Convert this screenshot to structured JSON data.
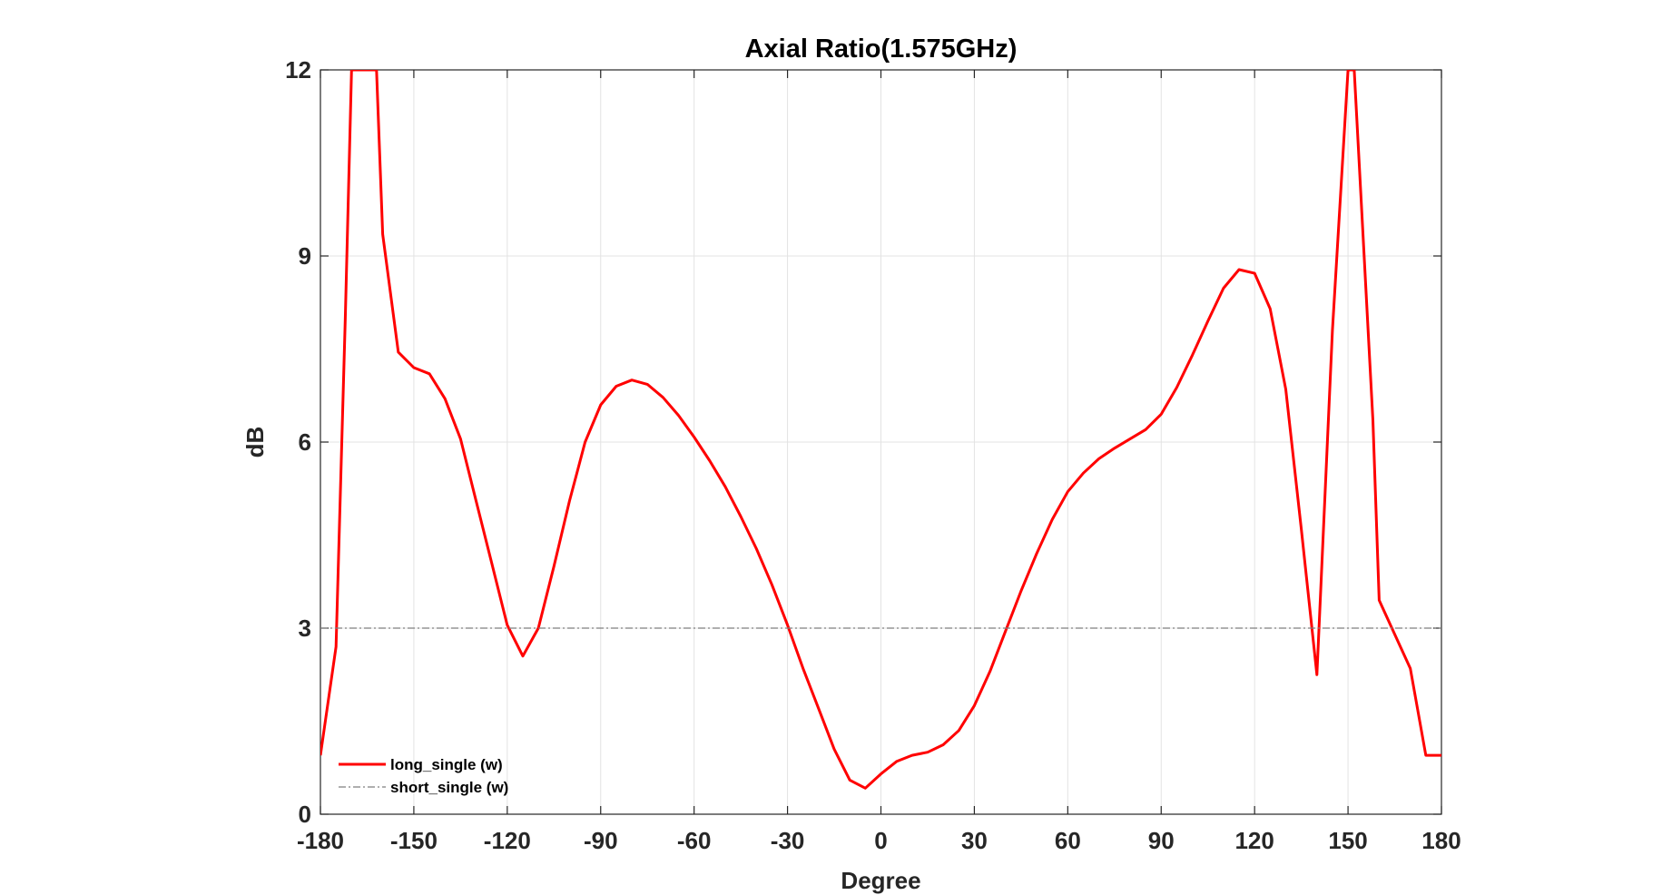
{
  "chart_data": {
    "type": "line",
    "title": "Axial Ratio(1.575GHz)",
    "xlabel": "Degree",
    "ylabel": "dB",
    "xlim": [
      -180,
      180
    ],
    "ylim": [
      0,
      12
    ],
    "xticks": [
      -180,
      -150,
      -120,
      -90,
      -60,
      -30,
      0,
      30,
      60,
      90,
      120,
      150,
      180
    ],
    "yticks": [
      0,
      3,
      6,
      9,
      12
    ],
    "grid": true,
    "legend_position": "bottom-left",
    "series": [
      {
        "name": "long_single (w)",
        "color": "#ff0000",
        "style": "solid",
        "x": [
          -180,
          -175,
          -172,
          -170,
          -162,
          -160,
          -155,
          -150,
          -145,
          -140,
          -135,
          -130,
          -125,
          -120,
          -115,
          -110,
          -105,
          -100,
          -95,
          -90,
          -85,
          -80,
          -75,
          -70,
          -65,
          -60,
          -55,
          -50,
          -45,
          -40,
          -35,
          -30,
          -25,
          -20,
          -15,
          -10,
          -5,
          0,
          5,
          10,
          15,
          20,
          25,
          30,
          35,
          40,
          45,
          50,
          55,
          60,
          65,
          70,
          75,
          80,
          85,
          90,
          95,
          100,
          105,
          110,
          115,
          120,
          125,
          130,
          135,
          140,
          145,
          150,
          152,
          158,
          160,
          165,
          170,
          175,
          180
        ],
        "y": [
          0.95,
          2.7,
          8.0,
          12.0,
          12.0,
          9.35,
          7.45,
          7.2,
          7.1,
          6.7,
          6.05,
          5.05,
          4.05,
          3.05,
          2.55,
          3.0,
          4.0,
          5.05,
          6.0,
          6.6,
          6.9,
          7.0,
          6.93,
          6.72,
          6.43,
          6.08,
          5.7,
          5.28,
          4.8,
          4.28,
          3.7,
          3.05,
          2.35,
          1.7,
          1.05,
          0.55,
          0.42,
          0.65,
          0.85,
          0.95,
          1.0,
          1.12,
          1.35,
          1.75,
          2.3,
          2.95,
          3.6,
          4.2,
          4.75,
          5.2,
          5.5,
          5.73,
          5.9,
          6.05,
          6.2,
          6.45,
          6.88,
          7.4,
          7.95,
          8.48,
          8.78,
          8.72,
          8.15,
          6.85,
          4.6,
          2.25,
          7.8,
          12.0,
          12.0,
          6.35,
          3.45,
          2.9,
          2.35,
          0.95,
          0.95
        ]
      },
      {
        "name": "short_single (w)",
        "color": "#7f7f7f",
        "style": "dashdot",
        "x": [
          -180,
          180
        ],
        "y": [
          3,
          3
        ]
      }
    ]
  }
}
